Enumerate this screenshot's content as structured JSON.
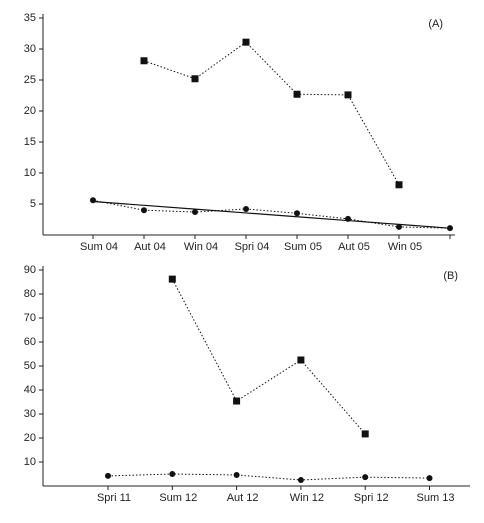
{
  "chart_data": [
    {
      "type": "line",
      "annotation": "(A)",
      "categories": [
        "Sum 04",
        "Aut 04",
        "Win 04",
        "Spri 04",
        "Sum 05",
        "Aut 05",
        "Win 05",
        null
      ],
      "ylim": [
        0,
        35
      ],
      "yticks": [
        5,
        10,
        15,
        20,
        25,
        30,
        35
      ],
      "series": [
        {
          "color": "#111111",
          "line_style": "dotted",
          "marker": "square",
          "values": [
            null,
            28.1,
            25.2,
            31.1,
            22.7,
            22.6,
            8.1,
            null
          ]
        },
        {
          "color": "#111111",
          "line_style": "dotted",
          "marker": "circle",
          "values": [
            5.6,
            4.0,
            3.7,
            4.2,
            3.5,
            2.6,
            1.3,
            1.1
          ]
        },
        {
          "color": "#111111",
          "line_style": "solid",
          "marker": "none",
          "values": [
            5.4,
            4.79,
            4.17,
            3.56,
            2.94,
            2.33,
            1.71,
            1.1
          ]
        }
      ]
    },
    {
      "type": "line",
      "annotation": "(B)",
      "categories": [
        "Spri 11",
        "Sum 12",
        "Aut 12",
        "Win 12",
        "Spri 12",
        "Sum 13"
      ],
      "ylim": [
        0,
        90
      ],
      "yticks": [
        10,
        20,
        30,
        40,
        50,
        60,
        70,
        80,
        90
      ],
      "series": [
        {
          "color": "#111111",
          "line_style": "dotted",
          "marker": "square",
          "values": [
            null,
            86.2,
            35.4,
            52.5,
            21.7,
            null
          ]
        },
        {
          "color": "#111111",
          "line_style": "dotted",
          "marker": "circle",
          "values": [
            4.2,
            5.0,
            4.6,
            2.5,
            3.7,
            3.3
          ]
        }
      ]
    }
  ]
}
